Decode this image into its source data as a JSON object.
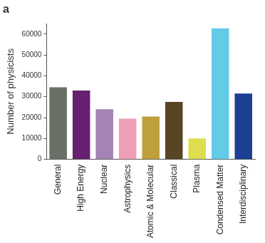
{
  "chart_data": {
    "type": "bar",
    "title": "a",
    "y_label": "Number of physicists",
    "categories": [
      "General",
      "High Energy",
      "Nuclear",
      "Astrophysics",
      "Atomic & Molecular",
      "Classical",
      "Plasma",
      "Condensed Matter",
      "Interdisciplinary"
    ],
    "values": [
      34500,
      33000,
      24000,
      19500,
      20500,
      27500,
      10000,
      62800,
      31500
    ],
    "colors": [
      "#6b7066",
      "#652170",
      "#a483b6",
      "#ee9fb8",
      "#bf9f3c",
      "#574526",
      "#dddd4f",
      "#63cbe8",
      "#1c3f94"
    ],
    "ylim": [
      0,
      65000
    ],
    "yticks": [
      0,
      10000,
      20000,
      30000,
      40000,
      50000,
      60000
    ],
    "grid": false
  }
}
